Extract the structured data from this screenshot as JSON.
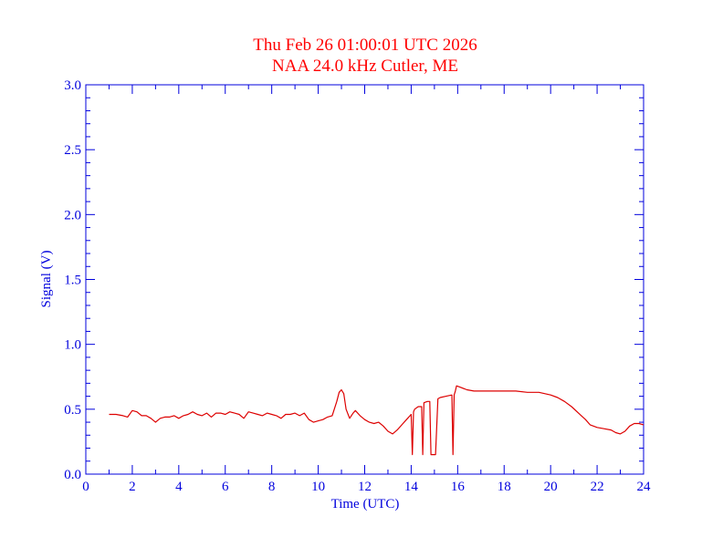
{
  "chart_data": {
    "type": "line",
    "title": "Thu Feb 26 01:00:01 UTC 2026",
    "subtitle": "NAA 24.0 kHz Cutler, ME",
    "xlabel": "Time (UTC)",
    "ylabel": "Signal (V)",
    "xlim": [
      0,
      24
    ],
    "ylim": [
      0.0,
      3.0
    ],
    "x_ticks": [
      "0",
      "2",
      "4",
      "6",
      "8",
      "10",
      "12",
      "14",
      "16",
      "18",
      "20",
      "22",
      "24"
    ],
    "y_ticks": [
      "0.0",
      "0.5",
      "1.0",
      "1.5",
      "2.0",
      "2.5",
      "3.0"
    ],
    "grid": false,
    "colors": {
      "frame": "#0000dd",
      "line": "#dd0000",
      "title": "#ff0000"
    },
    "series": [
      {
        "x": [
          1.0,
          1.3,
          1.6,
          1.8,
          2.0,
          2.2,
          2.4,
          2.6,
          2.8,
          3.0,
          3.2,
          3.4,
          3.6,
          3.8,
          4.0,
          4.2,
          4.4,
          4.6,
          4.8,
          5.0,
          5.2,
          5.4,
          5.6,
          5.8,
          6.0,
          6.2,
          6.4,
          6.6,
          6.8,
          7.0,
          7.2,
          7.4,
          7.6,
          7.8,
          8.0,
          8.2,
          8.4,
          8.6,
          8.8,
          9.0,
          9.2,
          9.4,
          9.6,
          9.8,
          10.0,
          10.2,
          10.4,
          10.6,
          10.8,
          10.9,
          11.0,
          11.1,
          11.2,
          11.35,
          11.5,
          11.6,
          11.8,
          12.0,
          12.2,
          12.4,
          12.6,
          12.8,
          13.0,
          13.2,
          13.4,
          13.6,
          13.8,
          14.0,
          14.05,
          14.1,
          14.15,
          14.3,
          14.45,
          14.5,
          14.55,
          14.7,
          14.8,
          14.85,
          14.9,
          15.05,
          15.15,
          15.25,
          15.5,
          15.75,
          15.8,
          15.85,
          15.9,
          15.95,
          16.1,
          16.4,
          16.7,
          17.0,
          17.5,
          18.0,
          18.5,
          19.0,
          19.5,
          20.0,
          20.3,
          20.6,
          20.9,
          21.2,
          21.5,
          21.7,
          22.0,
          22.3,
          22.6,
          22.8,
          23.0,
          23.2,
          23.4,
          23.6,
          23.8,
          24.0
        ],
        "values": [
          0.46,
          0.46,
          0.45,
          0.44,
          0.49,
          0.48,
          0.45,
          0.45,
          0.43,
          0.4,
          0.43,
          0.44,
          0.44,
          0.45,
          0.43,
          0.45,
          0.46,
          0.48,
          0.46,
          0.45,
          0.47,
          0.44,
          0.47,
          0.47,
          0.46,
          0.48,
          0.47,
          0.46,
          0.43,
          0.48,
          0.47,
          0.46,
          0.45,
          0.47,
          0.46,
          0.45,
          0.43,
          0.46,
          0.46,
          0.47,
          0.45,
          0.47,
          0.42,
          0.4,
          0.41,
          0.42,
          0.44,
          0.45,
          0.56,
          0.63,
          0.65,
          0.62,
          0.5,
          0.43,
          0.47,
          0.49,
          0.45,
          0.42,
          0.4,
          0.39,
          0.4,
          0.37,
          0.33,
          0.31,
          0.34,
          0.38,
          0.42,
          0.46,
          0.15,
          0.48,
          0.5,
          0.52,
          0.52,
          0.15,
          0.55,
          0.56,
          0.56,
          0.15,
          0.15,
          0.15,
          0.58,
          0.59,
          0.6,
          0.61,
          0.15,
          0.61,
          0.64,
          0.68,
          0.67,
          0.65,
          0.64,
          0.64,
          0.64,
          0.64,
          0.64,
          0.63,
          0.63,
          0.61,
          0.59,
          0.56,
          0.52,
          0.47,
          0.42,
          0.38,
          0.36,
          0.35,
          0.34,
          0.32,
          0.31,
          0.33,
          0.37,
          0.39,
          0.39,
          0.38
        ]
      }
    ]
  }
}
